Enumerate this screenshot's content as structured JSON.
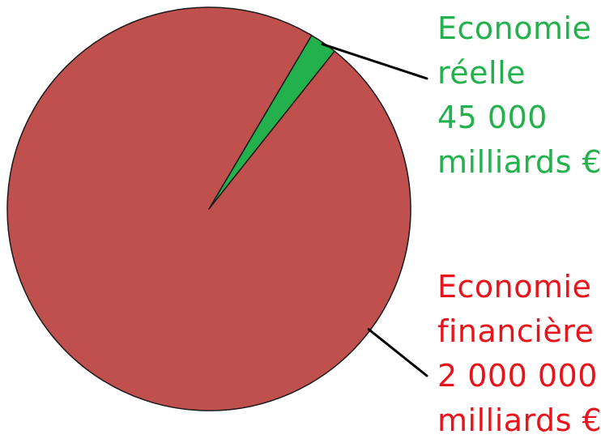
{
  "chart_data": {
    "type": "pie",
    "slices": [
      {
        "name_lines": [
          "Economie",
          "réelle"
        ],
        "value_label": "45 000",
        "unit_label": "milliards €",
        "value": 45000,
        "color": "#22b14c"
      },
      {
        "name_lines": [
          "Economie",
          "financière"
        ],
        "value_label": "2 000 000",
        "unit_label": "milliards €",
        "value": 2000000,
        "color": "#c0504d"
      }
    ],
    "slice_border_color": "#1a1a1a",
    "label_colors": [
      "#22b14c",
      "#e8141c"
    ]
  }
}
